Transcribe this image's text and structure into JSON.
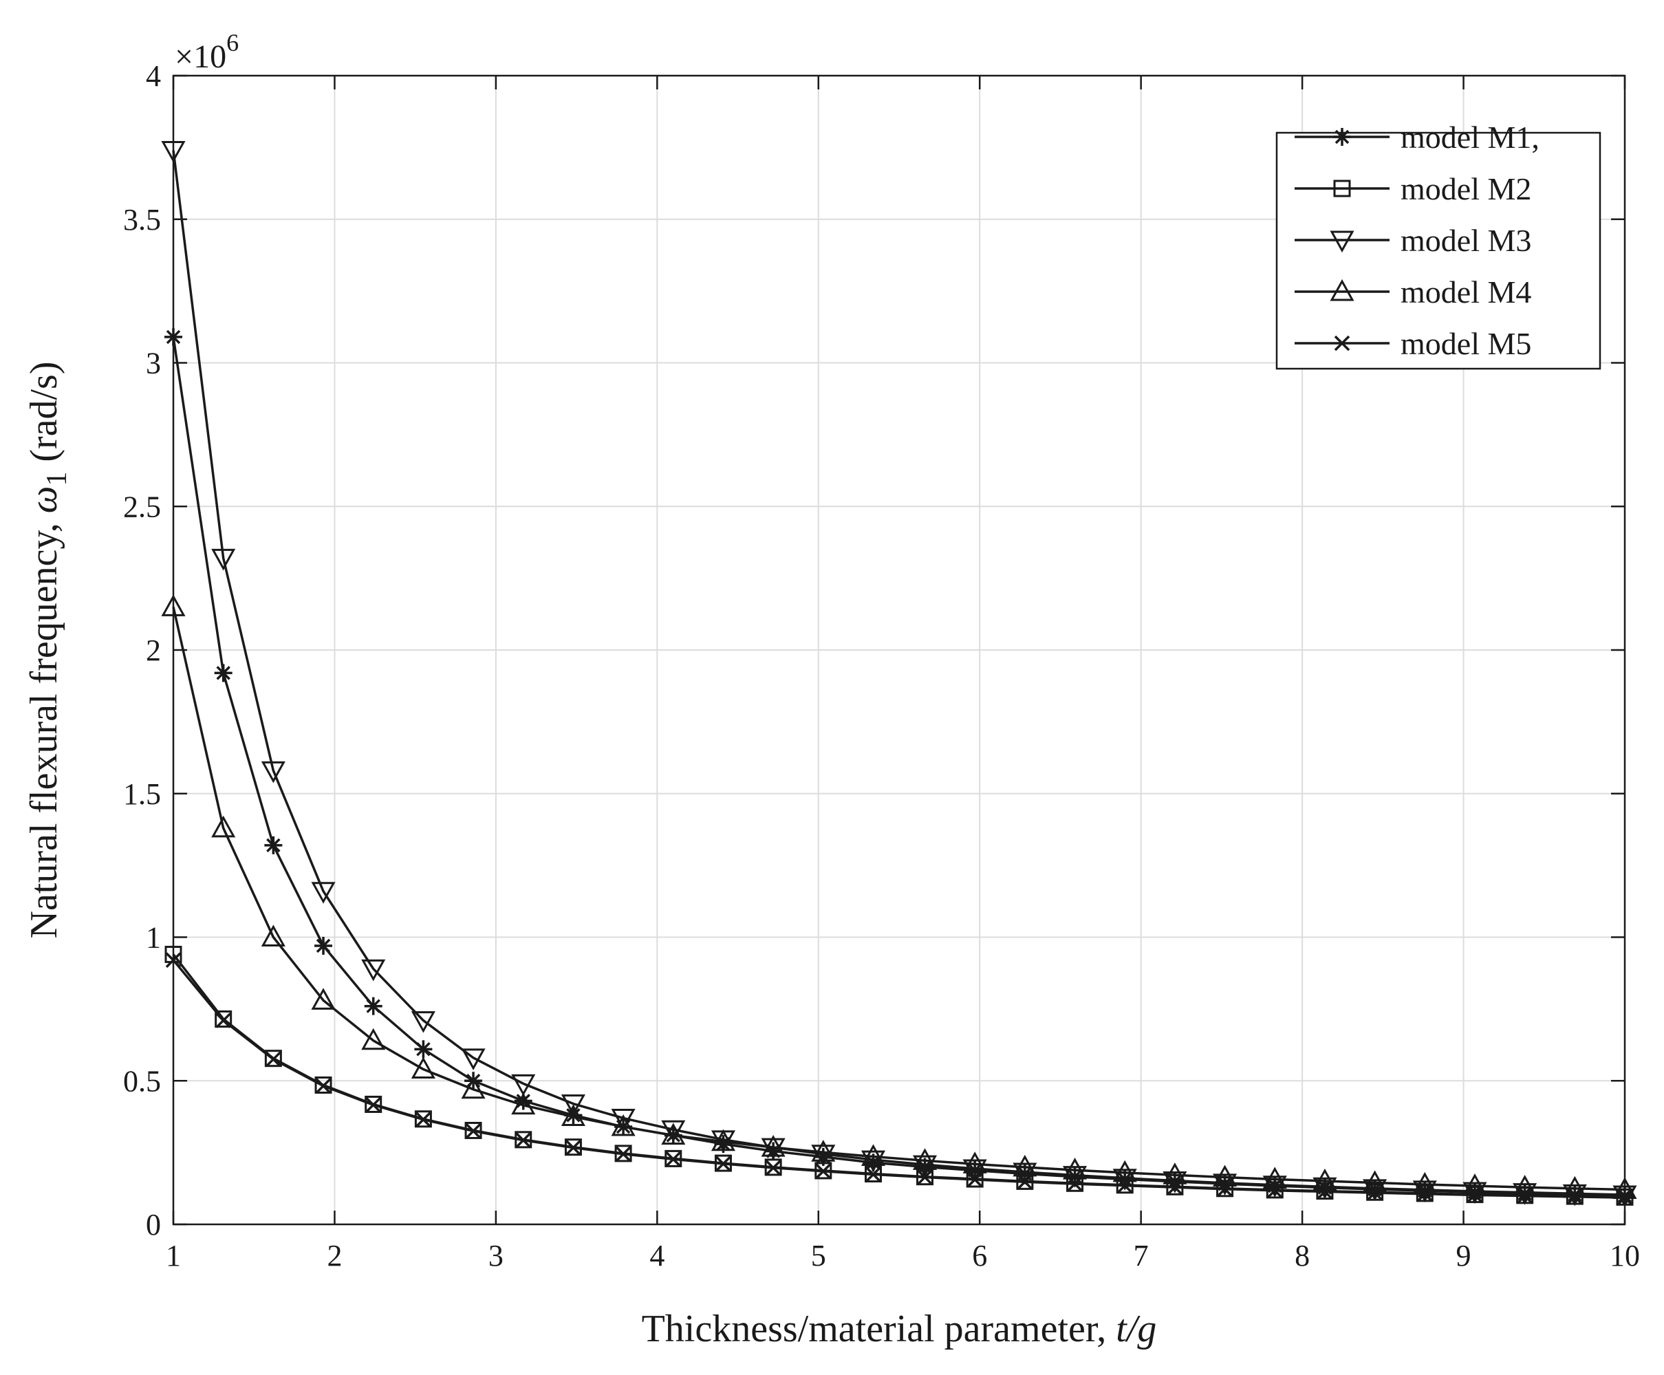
{
  "chart_data": {
    "type": "line",
    "title": "",
    "xlabel": {
      "main": "Thickness/material parameter, ",
      "italic": "t/g"
    },
    "ylabel": {
      "main": "Natural flexural frequency, ",
      "symbol": "ω",
      "subscript": "1",
      "unit": " (rad/s)"
    },
    "y_exponent": {
      "prefix": "×10",
      "power": "6"
    },
    "xlim": [
      1,
      10
    ],
    "ylim": [
      0,
      4000000
    ],
    "grid": true,
    "legend_position": "top-right",
    "x_ticks": [
      1,
      2,
      3,
      4,
      5,
      6,
      7,
      8,
      9,
      10
    ],
    "x_tick_labels": [
      "1",
      "2",
      "3",
      "4",
      "5",
      "6",
      "7",
      "8",
      "9",
      "10"
    ],
    "y_ticks": [
      0,
      500000,
      1000000,
      1500000,
      2000000,
      2500000,
      3000000,
      3500000,
      4000000
    ],
    "y_tick_labels": [
      "0",
      "0.5",
      "1",
      "1.5",
      "2",
      "2.5",
      "3",
      "3.5",
      "4"
    ],
    "x": [
      1,
      1.31,
      1.62,
      1.93,
      2.24,
      2.55,
      2.86,
      3.17,
      3.48,
      3.79,
      4.1,
      4.41,
      4.72,
      5.03,
      5.34,
      5.66,
      5.97,
      6.28,
      6.59,
      6.9,
      7.21,
      7.52,
      7.83,
      8.14,
      8.45,
      8.76,
      9.07,
      9.38,
      9.69,
      10
    ],
    "series": [
      {
        "name": "model M1,",
        "marker": "asterisk",
        "values": [
          3090000,
          1920000,
          1320000,
          970000,
          760000,
          610000,
          500000,
          430000,
          380000,
          340000,
          310000,
          280000,
          255000,
          235000,
          215000,
          200000,
          188000,
          176000,
          166000,
          157000,
          149000,
          141000,
          134000,
          128000,
          122000,
          117000,
          112000,
          107000,
          103000,
          99000
        ]
      },
      {
        "name": "model M2",
        "marker": "square",
        "values": [
          940000,
          715000,
          578000,
          485000,
          418000,
          367000,
          327000,
          295000,
          269000,
          247000,
          229000,
          213000,
          199000,
          187000,
          176000,
          166000,
          158000,
          150000,
          143000,
          137000,
          131000,
          125000,
          120000,
          116000,
          112000,
          108000,
          104000,
          101000,
          98000,
          95000
        ]
      },
      {
        "name": "model M3",
        "marker": "triangle-down",
        "values": [
          3740000,
          2320000,
          1580000,
          1160000,
          890000,
          710000,
          580000,
          490000,
          420000,
          370000,
          330000,
          295000,
          268000,
          245000,
          225000,
          208000,
          194000,
          182000,
          171000,
          161000,
          152000,
          144000,
          137000,
          131000,
          125000,
          120000,
          115000,
          111000,
          107000,
          103000
        ]
      },
      {
        "name": "model M4",
        "marker": "triangle-up",
        "values": [
          2150000,
          1380000,
          1000000,
          780000,
          640000,
          540000,
          470000,
          415000,
          375000,
          340000,
          310000,
          288000,
          268000,
          251000,
          236000,
          222000,
          210000,
          199000,
          189000,
          180000,
          172000,
          164000,
          157000,
          151000,
          145000,
          139000,
          134000,
          129000,
          125000,
          121000
        ]
      },
      {
        "name": "model M5",
        "marker": "x",
        "values": [
          920000,
          710000,
          575000,
          482000,
          416000,
          365000,
          325000,
          293000,
          267000,
          245000,
          227000,
          211000,
          197000,
          185000,
          174000,
          164000,
          156000,
          148000,
          141000,
          135000,
          129000,
          123000,
          118000,
          114000,
          110000,
          106000,
          102000,
          99000,
          96000,
          93000
        ]
      }
    ]
  }
}
